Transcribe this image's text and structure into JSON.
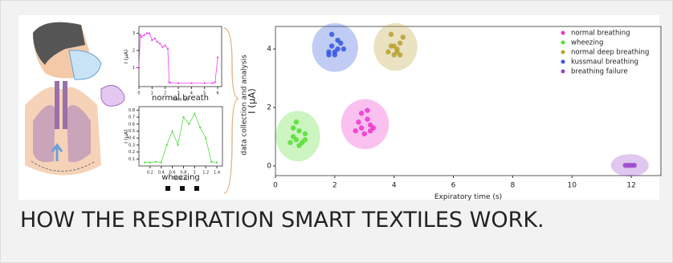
{
  "side_label": "data collection and analysis",
  "caption": "HOW THE RESPIRATION SMART TEXTILES WORK.",
  "chart_data": [
    {
      "type": "line",
      "title": "normal breath",
      "x_label": "Time (s)",
      "y_label": "I (μA)",
      "color": "#ee44ee",
      "x": [
        0,
        0.1,
        0.2,
        0.4,
        0.6,
        0.8,
        1.0,
        1.2,
        1.4,
        1.6,
        1.8,
        2.0,
        2.2,
        2.3,
        2.4,
        3.0,
        4.0,
        5.0,
        5.6,
        5.8,
        6.0
      ],
      "values": [
        1.0,
        2.9,
        2.8,
        2.9,
        3.0,
        3.0,
        2.6,
        2.7,
        2.5,
        2.4,
        2.2,
        2.3,
        2.1,
        0.15,
        0.12,
        0.1,
        0.1,
        0.1,
        0.1,
        0.15,
        1.6
      ],
      "xlim": [
        0,
        6.3
      ],
      "ylim": [
        -0.1,
        3.4
      ],
      "xticks": [
        0,
        1,
        2,
        3,
        4,
        5,
        6
      ],
      "yticks": [
        1,
        2,
        3
      ]
    },
    {
      "type": "line",
      "title": "wheezing",
      "x_label": "Time (s)",
      "y_label": "I (μA)",
      "color": "#55dd44",
      "x": [
        0.1,
        0.2,
        0.3,
        0.4,
        0.5,
        0.6,
        0.7,
        0.8,
        0.9,
        1.0,
        1.1,
        1.2,
        1.3,
        1.4
      ],
      "values": [
        0.05,
        0.05,
        0.06,
        0.05,
        0.3,
        0.5,
        0.3,
        0.7,
        0.6,
        0.75,
        0.55,
        0.4,
        0.06,
        0.05
      ],
      "xlim": [
        0,
        1.5
      ],
      "ylim": [
        0,
        0.85
      ],
      "xticks": [
        0.2,
        0.4,
        0.6,
        0.8,
        1.0,
        1.2,
        1.4
      ],
      "yticks": [
        0.1,
        0.2,
        0.3,
        0.4,
        0.5,
        0.6,
        0.7,
        0.8
      ]
    },
    {
      "type": "scatter",
      "x_label": "Expiratory time (s)",
      "y_label": "I (μA)",
      "xlim": [
        0,
        13
      ],
      "ylim": [
        -0.33,
        4.77
      ],
      "xticks": [
        0,
        2,
        4,
        6,
        8,
        10,
        12
      ],
      "yticks": [
        0,
        2,
        4
      ],
      "series": [
        {
          "name": "normal breathing",
          "color": "#ee33cc",
          "x": [
            2.7,
            2.8,
            2.9,
            3.0,
            3.1,
            3.2,
            3.3,
            2.9,
            3.1,
            3.2
          ],
          "values": [
            1.2,
            1.5,
            1.3,
            1.1,
            1.6,
            1.4,
            1.3,
            1.8,
            1.9,
            1.2
          ]
        },
        {
          "name": "wheezing",
          "color": "#55dd33",
          "x": [
            0.5,
            0.6,
            0.7,
            0.8,
            0.9,
            1.0,
            0.6,
            0.8,
            1.0,
            0.7
          ],
          "values": [
            0.8,
            1.0,
            0.9,
            1.2,
            0.8,
            1.1,
            1.3,
            0.7,
            0.9,
            1.5
          ]
        },
        {
          "name": "normal  deep breathing",
          "color": "#b8a030",
          "x": [
            3.8,
            3.9,
            4.0,
            4.1,
            4.2,
            4.3,
            3.9,
            4.1,
            4.0,
            4.2
          ],
          "values": [
            3.9,
            4.1,
            3.8,
            4.0,
            4.2,
            4.4,
            4.5,
            3.9,
            4.1,
            3.8
          ]
        },
        {
          "name": "kussmaul breathing",
          "color": "#3355dd",
          "x": [
            1.8,
            1.9,
            2.0,
            2.1,
            2.2,
            1.9,
            2.0,
            2.1,
            2.3,
            1.8
          ],
          "values": [
            3.9,
            4.1,
            3.8,
            4.0,
            4.2,
            4.5,
            3.9,
            4.3,
            4.0,
            3.8
          ]
        },
        {
          "name": "breathing failure",
          "color": "#9944cc",
          "x": [
            11.8,
            11.9,
            12.0,
            12.1
          ],
          "values": [
            0.02,
            0.02,
            0.02,
            0.02
          ]
        }
      ]
    }
  ]
}
